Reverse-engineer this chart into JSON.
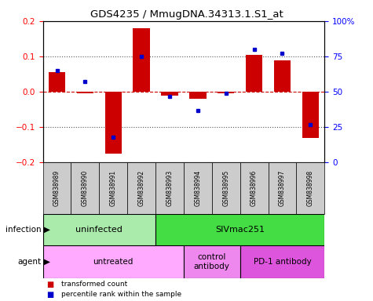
{
  "title": "GDS4235 / MmugDNA.34313.1.S1_at",
  "samples": [
    "GSM838989",
    "GSM838990",
    "GSM838991",
    "GSM838992",
    "GSM838993",
    "GSM838994",
    "GSM838995",
    "GSM838996",
    "GSM838997",
    "GSM838998"
  ],
  "red_values": [
    0.055,
    -0.005,
    -0.175,
    0.18,
    -0.01,
    -0.02,
    -0.005,
    0.105,
    0.09,
    -0.13
  ],
  "blue_values_pct": [
    65,
    57,
    18,
    75,
    47,
    37,
    49,
    80,
    77,
    27
  ],
  "ylim_left": [
    -0.2,
    0.2
  ],
  "ylim_right": [
    0,
    100
  ],
  "yticks_left": [
    -0.2,
    -0.1,
    0.0,
    0.1,
    0.2
  ],
  "yticks_right": [
    0,
    25,
    50,
    75,
    100
  ],
  "ytick_right_labels": [
    "0",
    "25",
    "50",
    "75",
    "100%"
  ],
  "infection_groups": [
    {
      "label": "uninfected",
      "start": 0,
      "end": 4,
      "color": "#AAEAAA"
    },
    {
      "label": "SIVmac251",
      "start": 4,
      "end": 10,
      "color": "#44DD44"
    }
  ],
  "agent_groups": [
    {
      "label": "untreated",
      "start": 0,
      "end": 5,
      "color": "#FFAAFF"
    },
    {
      "label": "control\nantibody",
      "start": 5,
      "end": 7,
      "color": "#EE88EE"
    },
    {
      "label": "PD-1 antibody",
      "start": 7,
      "end": 10,
      "color": "#DD55DD"
    }
  ],
  "red_color": "#CC0000",
  "blue_color": "#0000CC",
  "zero_line_color": "#CC0000",
  "dotted_line_color": "#555555",
  "bar_width": 0.6,
  "legend_items": [
    {
      "label": "transformed count",
      "color": "#CC0000"
    },
    {
      "label": "percentile rank within the sample",
      "color": "#0000CC"
    }
  ],
  "sample_box_color": "#CCCCCC",
  "infection_label": "infection",
  "agent_label": "agent"
}
